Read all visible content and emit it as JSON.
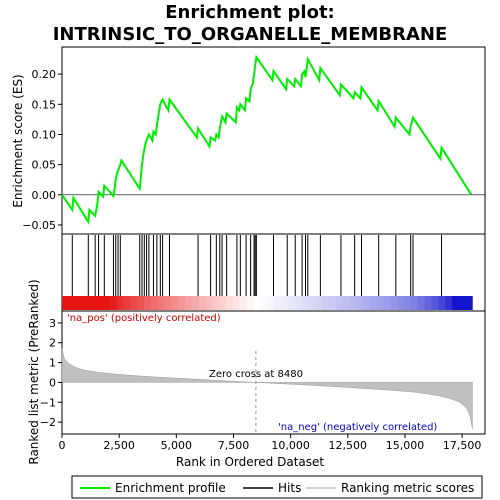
{
  "chart_data": {
    "type": "line",
    "title_lines": [
      "Enrichment plot:",
      "INTRINSIC_TO_ORGANELLE_MEMBRANE"
    ],
    "xlabel": "Rank in Ordered Dataset",
    "xlim": [
      0,
      18500
    ],
    "x_ticks": [
      0,
      2500,
      5000,
      7500,
      10000,
      12500,
      15000,
      17500
    ],
    "x_tick_labels": [
      "0",
      "2,500",
      "5,000",
      "7,500",
      "10,000",
      "12,500",
      "15,000",
      "17,500"
    ],
    "top_panel": {
      "ylabel": "Enrichment score (ES)",
      "ylim": [
        -0.065,
        0.245
      ],
      "y_ticks": [
        -0.05,
        0.0,
        0.05,
        0.1,
        0.15,
        0.2
      ],
      "y_tick_labels": [
        "−0.05",
        "0.00",
        "0.05",
        "0.10",
        "0.15",
        "0.20"
      ],
      "series": [
        {
          "name": "Enrichment profile",
          "color": "#00ee00",
          "x": [
            0,
            450,
            500,
            1150,
            1200,
            1450,
            1500,
            1550,
            1600,
            1800,
            1850,
            2250,
            2300,
            2350,
            2400,
            2500,
            2550,
            2600,
            3400,
            3450,
            3500,
            3550,
            3600,
            3650,
            3700,
            3750,
            3800,
            3950,
            4000,
            4100,
            4150,
            4250,
            4300,
            4350,
            4400,
            4650,
            4700,
            5900,
            5950,
            6450,
            6500,
            6700,
            6750,
            6850,
            6900,
            6950,
            7000,
            7150,
            7200,
            7600,
            7650,
            7750,
            7800,
            8000,
            8050,
            8200,
            8250,
            8350,
            8400,
            8450,
            8500,
            9200,
            9250,
            9800,
            9850,
            10150,
            10200,
            10450,
            10500,
            10600,
            10650,
            10700,
            10750,
            11250,
            11300,
            12150,
            12200,
            12750,
            12800,
            13050,
            13100,
            13800,
            13850,
            14550,
            14600,
            15200,
            15250,
            15300,
            15350,
            16550,
            16600,
            17900
          ],
          "values": [
            0.0,
            -0.025,
            -0.005,
            -0.045,
            -0.025,
            -0.035,
            -0.025,
            -0.015,
            0.005,
            -0.003,
            0.015,
            -0.002,
            0.01,
            0.025,
            0.035,
            0.045,
            0.05,
            0.057,
            0.01,
            0.03,
            0.05,
            0.065,
            0.075,
            0.085,
            0.09,
            0.095,
            0.1,
            0.09,
            0.105,
            0.1,
            0.115,
            0.14,
            0.15,
            0.155,
            0.158,
            0.14,
            0.158,
            0.095,
            0.11,
            0.08,
            0.095,
            0.09,
            0.1,
            0.095,
            0.11,
            0.12,
            0.13,
            0.12,
            0.135,
            0.12,
            0.145,
            0.14,
            0.15,
            0.14,
            0.16,
            0.155,
            0.175,
            0.185,
            0.2,
            0.215,
            0.228,
            0.19,
            0.205,
            0.175,
            0.192,
            0.18,
            0.192,
            0.18,
            0.2,
            0.205,
            0.195,
            0.21,
            0.225,
            0.19,
            0.21,
            0.165,
            0.183,
            0.16,
            0.17,
            0.16,
            0.178,
            0.14,
            0.155,
            0.113,
            0.128,
            0.1,
            0.115,
            0.12,
            0.128,
            0.06,
            0.078,
            0.0
          ]
        }
      ]
    },
    "hits": [
      450,
      1150,
      1450,
      1600,
      1850,
      2250,
      2350,
      2450,
      2550,
      3400,
      3500,
      3600,
      3700,
      3800,
      4000,
      4150,
      4300,
      4400,
      4700,
      5950,
      6500,
      6750,
      6900,
      7000,
      7200,
      7650,
      7800,
      8050,
      8250,
      8400,
      8450,
      8500,
      9250,
      9850,
      10200,
      10500,
      10650,
      10750,
      11300,
      12200,
      12800,
      13100,
      13850,
      14600,
      15250,
      15350,
      16600
    ],
    "bottom_panel": {
      "ylabel": "Ranked list metric (PreRanked)",
      "ylim": [
        -2.6,
        3.6
      ],
      "y_ticks": [
        -2,
        -1,
        0,
        1,
        2,
        3
      ],
      "y_tick_labels": [
        "−2",
        "−1",
        "0",
        "1",
        "2",
        "3"
      ],
      "metric_color": "#c0c0c0",
      "metric_curve": {
        "x": [
          0,
          100,
          300,
          600,
          1000,
          1500,
          2500,
          4000,
          6000,
          8480,
          10500,
          12500,
          14500,
          15500,
          16500,
          17000,
          17400,
          17700,
          17850,
          17950
        ],
        "y": [
          1.7,
          1.2,
          0.95,
          0.75,
          0.62,
          0.52,
          0.4,
          0.28,
          0.15,
          0.0,
          -0.12,
          -0.25,
          -0.4,
          -0.5,
          -0.68,
          -0.82,
          -1.0,
          -1.3,
          -1.7,
          -2.35
        ]
      },
      "zero_cross_x": 8480,
      "annotations": [
        {
          "text": "'na_pos' (positively correlated)",
          "color": "#cc0000"
        },
        {
          "text": "Zero cross at 8480",
          "color": "#000000"
        },
        {
          "text": "'na_neg' (negatively correlated)",
          "color": "#0000cc"
        }
      ]
    },
    "legend": [
      {
        "label": "Enrichment profile",
        "color": "#00ee00"
      },
      {
        "label": "Hits",
        "color": "#000000"
      },
      {
        "label": "Ranking metric scores",
        "color": "#c0c0c0"
      }
    ]
  }
}
